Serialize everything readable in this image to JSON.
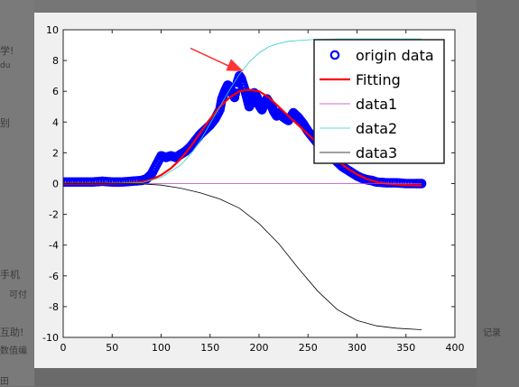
{
  "background": {
    "left_snippets": [
      "学!",
      "du",
      "别",
      "手机",
      "可付",
      "互助!",
      "数值编",
      "田"
    ],
    "right_snippets": [
      "记录"
    ]
  },
  "chart_data": {
    "type": "line",
    "xlim": [
      0,
      400
    ],
    "ylim": [
      -10,
      10
    ],
    "xticks": [
      0,
      50,
      100,
      150,
      200,
      250,
      300,
      350,
      400
    ],
    "yticks": [
      -10,
      -8,
      -6,
      -4,
      -2,
      0,
      2,
      4,
      6,
      8,
      10
    ],
    "legend_placement": "top-right",
    "grid": false,
    "series": [
      {
        "name": "origin data",
        "style": "circle-markers",
        "color": "#0000ff",
        "x": [
          0,
          10,
          20,
          30,
          40,
          50,
          60,
          70,
          80,
          85,
          90,
          95,
          100,
          105,
          110,
          115,
          120,
          125,
          130,
          135,
          140,
          145,
          150,
          155,
          160,
          162,
          165,
          168,
          170,
          172,
          175,
          178,
          180,
          182,
          185,
          188,
          190,
          193,
          195,
          198,
          200,
          203,
          205,
          208,
          210,
          213,
          215,
          218,
          220,
          225,
          230,
          235,
          240,
          245,
          250,
          255,
          260,
          265,
          270,
          275,
          280,
          285,
          290,
          295,
          300,
          305,
          310,
          315,
          320,
          330,
          340,
          350,
          360,
          366
        ],
        "y": [
          0.1,
          0.1,
          0.1,
          0.1,
          0.15,
          0.1,
          0.1,
          0.15,
          0.2,
          0.3,
          0.6,
          1.2,
          1.8,
          1.7,
          1.8,
          1.7,
          1.9,
          2.1,
          2.4,
          2.8,
          3.2,
          3.5,
          3.8,
          4.2,
          4.8,
          5.5,
          6.0,
          6.4,
          6.3,
          6.0,
          5.6,
          6.6,
          7.0,
          6.8,
          6.2,
          5.5,
          5.0,
          5.4,
          5.9,
          5.6,
          5.1,
          4.8,
          5.2,
          5.5,
          5.3,
          5.0,
          4.7,
          4.4,
          4.6,
          4.3,
          4.1,
          4.6,
          4.3,
          3.9,
          3.4,
          3.0,
          2.6,
          2.2,
          2.0,
          1.7,
          1.4,
          1.1,
          0.9,
          0.7,
          0.5,
          0.35,
          0.25,
          0.2,
          0.1,
          0.05,
          0.05,
          0.0,
          0.0,
          0.0
        ]
      },
      {
        "name": "Fitting",
        "style": "line",
        "color": "#ff0000",
        "x": [
          0,
          20,
          40,
          60,
          80,
          90,
          100,
          110,
          120,
          130,
          140,
          150,
          160,
          170,
          180,
          190,
          200,
          210,
          220,
          230,
          240,
          250,
          260,
          270,
          280,
          290,
          300,
          310,
          320,
          330,
          340,
          350,
          360,
          366
        ],
        "y": [
          0.0,
          0.0,
          0.0,
          0.02,
          0.1,
          0.25,
          0.55,
          1.0,
          1.6,
          2.4,
          3.3,
          4.2,
          5.0,
          5.6,
          6.0,
          6.1,
          6.0,
          5.6,
          5.0,
          4.4,
          3.8,
          3.2,
          2.6,
          2.0,
          1.5,
          1.0,
          0.6,
          0.3,
          0.1,
          0.0,
          -0.05,
          -0.1,
          -0.12,
          -0.12
        ]
      },
      {
        "name": "data1",
        "style": "line",
        "color": "#bf3fbf",
        "x": [
          0,
          366
        ],
        "y": [
          0.0,
          0.0
        ]
      },
      {
        "name": "data2",
        "style": "line",
        "color": "#2fcfcf",
        "x": [
          0,
          40,
          80,
          100,
          120,
          130,
          140,
          150,
          160,
          170,
          180,
          190,
          200,
          210,
          220,
          230,
          240,
          250,
          260,
          280,
          300,
          330,
          366
        ],
        "y": [
          0.0,
          0.0,
          0.05,
          0.4,
          1.2,
          1.9,
          2.8,
          3.9,
          5.0,
          6.1,
          7.1,
          7.9,
          8.5,
          8.9,
          9.1,
          9.25,
          9.3,
          9.35,
          9.38,
          9.4,
          9.4,
          9.4,
          9.4
        ]
      },
      {
        "name": "data3",
        "style": "line",
        "color": "#000000",
        "x": [
          0,
          60,
          80,
          100,
          120,
          140,
          160,
          180,
          200,
          220,
          240,
          260,
          280,
          300,
          320,
          340,
          366
        ],
        "y": [
          0.0,
          0.0,
          -0.02,
          -0.1,
          -0.3,
          -0.6,
          -1.0,
          -1.6,
          -2.6,
          -3.9,
          -5.5,
          -7.0,
          -8.2,
          -8.9,
          -9.25,
          -9.4,
          -9.5
        ]
      }
    ],
    "annotations": [
      {
        "type": "arrow",
        "color": "#ff3333",
        "from": [
          130,
          8.8
        ],
        "to": [
          184,
          7.3
        ]
      }
    ]
  }
}
